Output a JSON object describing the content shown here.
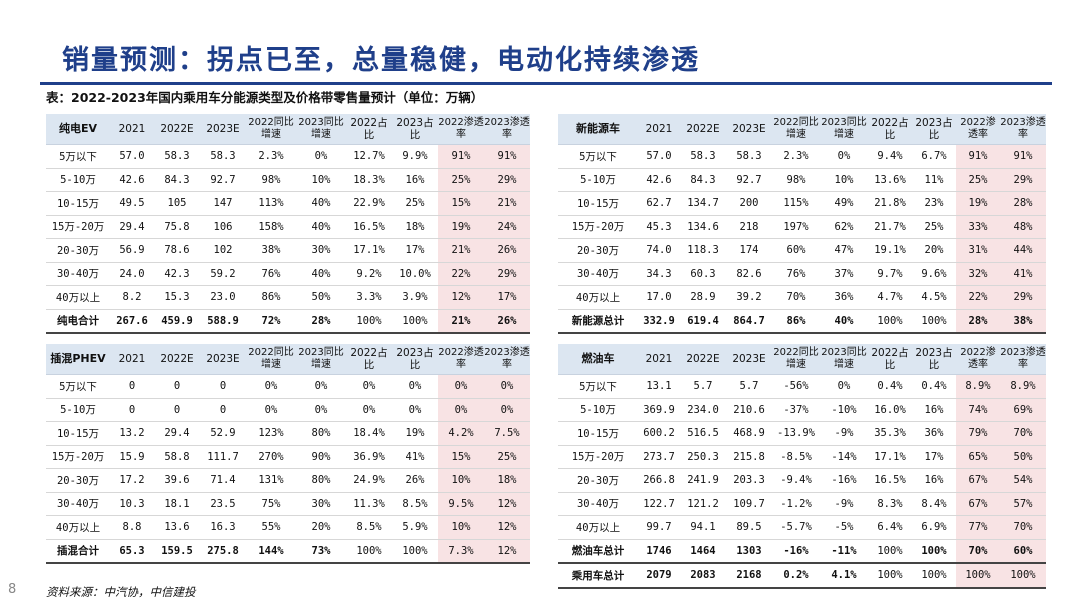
{
  "slide": {
    "title": "销量预测：拐点已至，总量稳健，电动化持续渗透",
    "caption": "表：2022-2023年国内乘用车分能源类型及价格带零售量预计（单位：万辆）",
    "source": "资料来源：中汽协，中信建投",
    "page": "8"
  },
  "colors": {
    "title": "#1f3f8a",
    "header_bg": "#dce6f1",
    "pink_bg": "#f8e3e4"
  },
  "tables": [
    {
      "name": "纯电EV",
      "columns": [
        "2021",
        "2022E",
        "2023E",
        "2022同比增速",
        "2023同比增速",
        "2022占比",
        "2023占比",
        "2022渗透率",
        "2023渗透率"
      ],
      "rows": [
        [
          "5万以下",
          "57.0",
          "58.3",
          "58.3",
          "2.3%",
          "0%",
          "12.7%",
          "9.9%",
          "91%",
          "91%"
        ],
        [
          "5-10万",
          "42.6",
          "84.3",
          "92.7",
          "98%",
          "10%",
          "18.3%",
          "16%",
          "25%",
          "29%"
        ],
        [
          "10-15万",
          "49.5",
          "105",
          "147",
          "113%",
          "40%",
          "22.9%",
          "25%",
          "15%",
          "21%"
        ],
        [
          "15万-20万",
          "29.4",
          "75.8",
          "106",
          "158%",
          "40%",
          "16.5%",
          "18%",
          "19%",
          "24%"
        ],
        [
          "20-30万",
          "56.9",
          "78.6",
          "102",
          "38%",
          "30%",
          "17.1%",
          "17%",
          "21%",
          "26%"
        ],
        [
          "30-40万",
          "24.0",
          "42.3",
          "59.2",
          "76%",
          "40%",
          "9.2%",
          "10.0%",
          "22%",
          "29%"
        ],
        [
          "40万以上",
          "8.2",
          "15.3",
          "23.0",
          "86%",
          "50%",
          "3.3%",
          "3.9%",
          "12%",
          "17%"
        ]
      ],
      "total": [
        "纯电合计",
        "267.6",
        "459.9",
        "588.9",
        "72%",
        "28%",
        "100%",
        "100%",
        "21%",
        "26%"
      ]
    },
    {
      "name": "插混PHEV",
      "columns": [
        "2021",
        "2022E",
        "2023E",
        "2022同比增速",
        "2023同比增速",
        "2022占比",
        "2023占比",
        "2022渗透率",
        "2023渗透率"
      ],
      "rows": [
        [
          "5万以下",
          "0",
          "0",
          "0",
          "0%",
          "0%",
          "0%",
          "0%",
          "0%",
          "0%"
        ],
        [
          "5-10万",
          "0",
          "0",
          "0",
          "0%",
          "0%",
          "0%",
          "0%",
          "0%",
          "0%"
        ],
        [
          "10-15万",
          "13.2",
          "29.4",
          "52.9",
          "123%",
          "80%",
          "18.4%",
          "19%",
          "4.2%",
          "7.5%"
        ],
        [
          "15万-20万",
          "15.9",
          "58.8",
          "111.7",
          "270%",
          "90%",
          "36.9%",
          "41%",
          "15%",
          "25%"
        ],
        [
          "20-30万",
          "17.2",
          "39.6",
          "71.4",
          "131%",
          "80%",
          "24.9%",
          "26%",
          "10%",
          "18%"
        ],
        [
          "30-40万",
          "10.3",
          "18.1",
          "23.5",
          "75%",
          "30%",
          "11.3%",
          "8.5%",
          "9.5%",
          "12%"
        ],
        [
          "40万以上",
          "8.8",
          "13.6",
          "16.3",
          "55%",
          "20%",
          "8.5%",
          "5.9%",
          "10%",
          "12%"
        ]
      ],
      "total": [
        "插混合计",
        "65.3",
        "159.5",
        "275.8",
        "144%",
        "73%",
        "100%",
        "100%",
        "7.3%",
        "12%"
      ]
    },
    {
      "name": "新能源车",
      "columns": [
        "2021",
        "2022E",
        "2023E",
        "2022同比增速",
        "2023同比增速",
        "2022占比",
        "2023占比",
        "2022渗透率",
        "2023渗透率"
      ],
      "rows": [
        [
          "5万以下",
          "57.0",
          "58.3",
          "58.3",
          "2.3%",
          "0%",
          "9.4%",
          "6.7%",
          "91%",
          "91%"
        ],
        [
          "5-10万",
          "42.6",
          "84.3",
          "92.7",
          "98%",
          "10%",
          "13.6%",
          "11%",
          "25%",
          "29%"
        ],
        [
          "10-15万",
          "62.7",
          "134.7",
          "200",
          "115%",
          "49%",
          "21.8%",
          "23%",
          "19%",
          "28%"
        ],
        [
          "15万-20万",
          "45.3",
          "134.6",
          "218",
          "197%",
          "62%",
          "21.7%",
          "25%",
          "33%",
          "48%"
        ],
        [
          "20-30万",
          "74.0",
          "118.3",
          "174",
          "60%",
          "47%",
          "19.1%",
          "20%",
          "31%",
          "44%"
        ],
        [
          "30-40万",
          "34.3",
          "60.3",
          "82.6",
          "76%",
          "37%",
          "9.7%",
          "9.6%",
          "32%",
          "41%"
        ],
        [
          "40万以上",
          "17.0",
          "28.9",
          "39.2",
          "70%",
          "36%",
          "4.7%",
          "4.5%",
          "22%",
          "29%"
        ]
      ],
      "total": [
        "新能源总计",
        "332.9",
        "619.4",
        "864.7",
        "86%",
        "40%",
        "100%",
        "100%",
        "28%",
        "38%"
      ]
    },
    {
      "name": "燃油车",
      "columns": [
        "2021",
        "2022E",
        "2023E",
        "2022同比增速",
        "2023同比增速",
        "2022占比",
        "2023占比",
        "2022渗透率",
        "2023渗透率"
      ],
      "rows": [
        [
          "5万以下",
          "13.1",
          "5.7",
          "5.7",
          "-56%",
          "0%",
          "0.4%",
          "0.4%",
          "8.9%",
          "8.9%"
        ],
        [
          "5-10万",
          "369.9",
          "234.0",
          "210.6",
          "-37%",
          "-10%",
          "16.0%",
          "16%",
          "74%",
          "69%"
        ],
        [
          "10-15万",
          "600.2",
          "516.5",
          "468.9",
          "-13.9%",
          "-9%",
          "35.3%",
          "36%",
          "79%",
          "70%"
        ],
        [
          "15万-20万",
          "273.7",
          "250.3",
          "215.8",
          "-8.5%",
          "-14%",
          "17.1%",
          "17%",
          "65%",
          "50%"
        ],
        [
          "20-30万",
          "266.8",
          "241.9",
          "203.3",
          "-9.4%",
          "-16%",
          "16.5%",
          "16%",
          "67%",
          "54%"
        ],
        [
          "30-40万",
          "122.7",
          "121.2",
          "109.7",
          "-1.2%",
          "-9%",
          "8.3%",
          "8.4%",
          "67%",
          "57%"
        ],
        [
          "40万以上",
          "99.7",
          "94.1",
          "89.5",
          "-5.7%",
          "-5%",
          "6.4%",
          "6.9%",
          "77%",
          "70%"
        ]
      ],
      "total": [
        "燃油车总计",
        "1746",
        "1464",
        "1303",
        "-16%",
        "-11%",
        "100%",
        "100%",
        "70%",
        "60%"
      ]
    }
  ],
  "grand_total": [
    "乘用车总计",
    "2079",
    "2083",
    "2168",
    "0.2%",
    "4.1%",
    "100%",
    "100%",
    "100%",
    "100%"
  ]
}
